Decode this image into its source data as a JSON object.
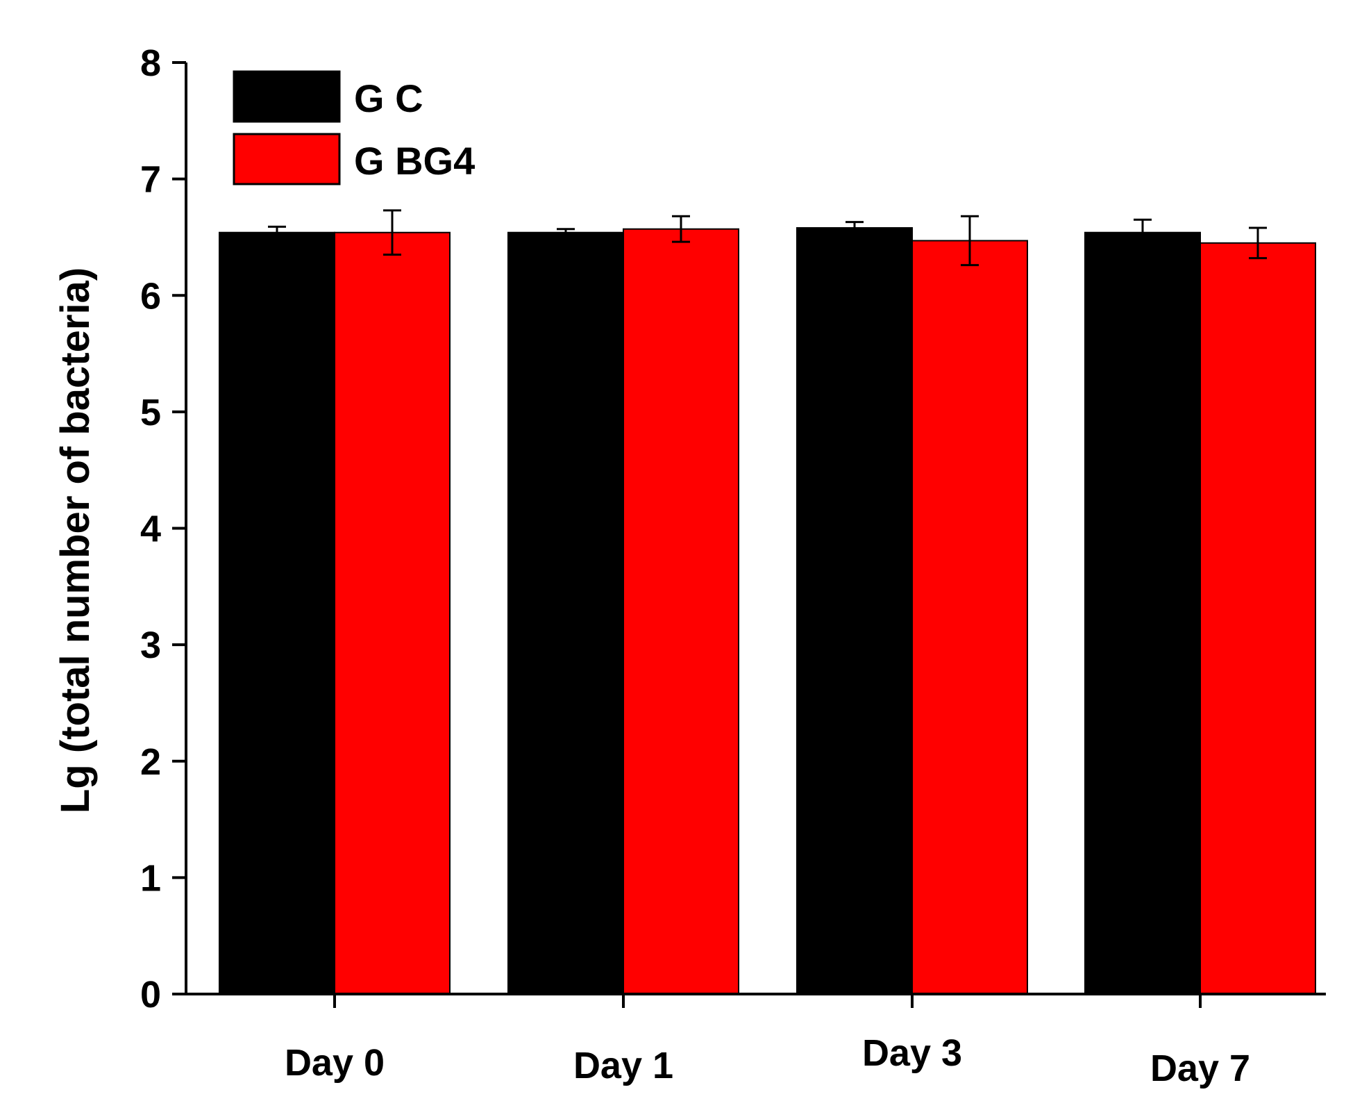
{
  "chart_data": {
    "type": "bar",
    "title": "",
    "xlabel": "",
    "ylabel": "Lg (total number of bacteria)",
    "ylim": [
      0,
      8
    ],
    "yticks": [
      "0",
      "1",
      "2",
      "3",
      "4",
      "5",
      "6",
      "7",
      "8"
    ],
    "categories": [
      "Day 0",
      "Day 1",
      "Day 3",
      "Day 7"
    ],
    "series": [
      {
        "name": "G C",
        "color": "#000000",
        "values": [
          6.54,
          6.54,
          6.58,
          6.54
        ],
        "errors": [
          0.05,
          0.03,
          0.05,
          0.11
        ]
      },
      {
        "name": "G BG4",
        "color": "#ff0000",
        "values": [
          6.54,
          6.57,
          6.47,
          6.45
        ],
        "errors": [
          0.19,
          0.11,
          0.21,
          0.13
        ]
      }
    ],
    "legend_position": "top-left",
    "grid": false
  }
}
